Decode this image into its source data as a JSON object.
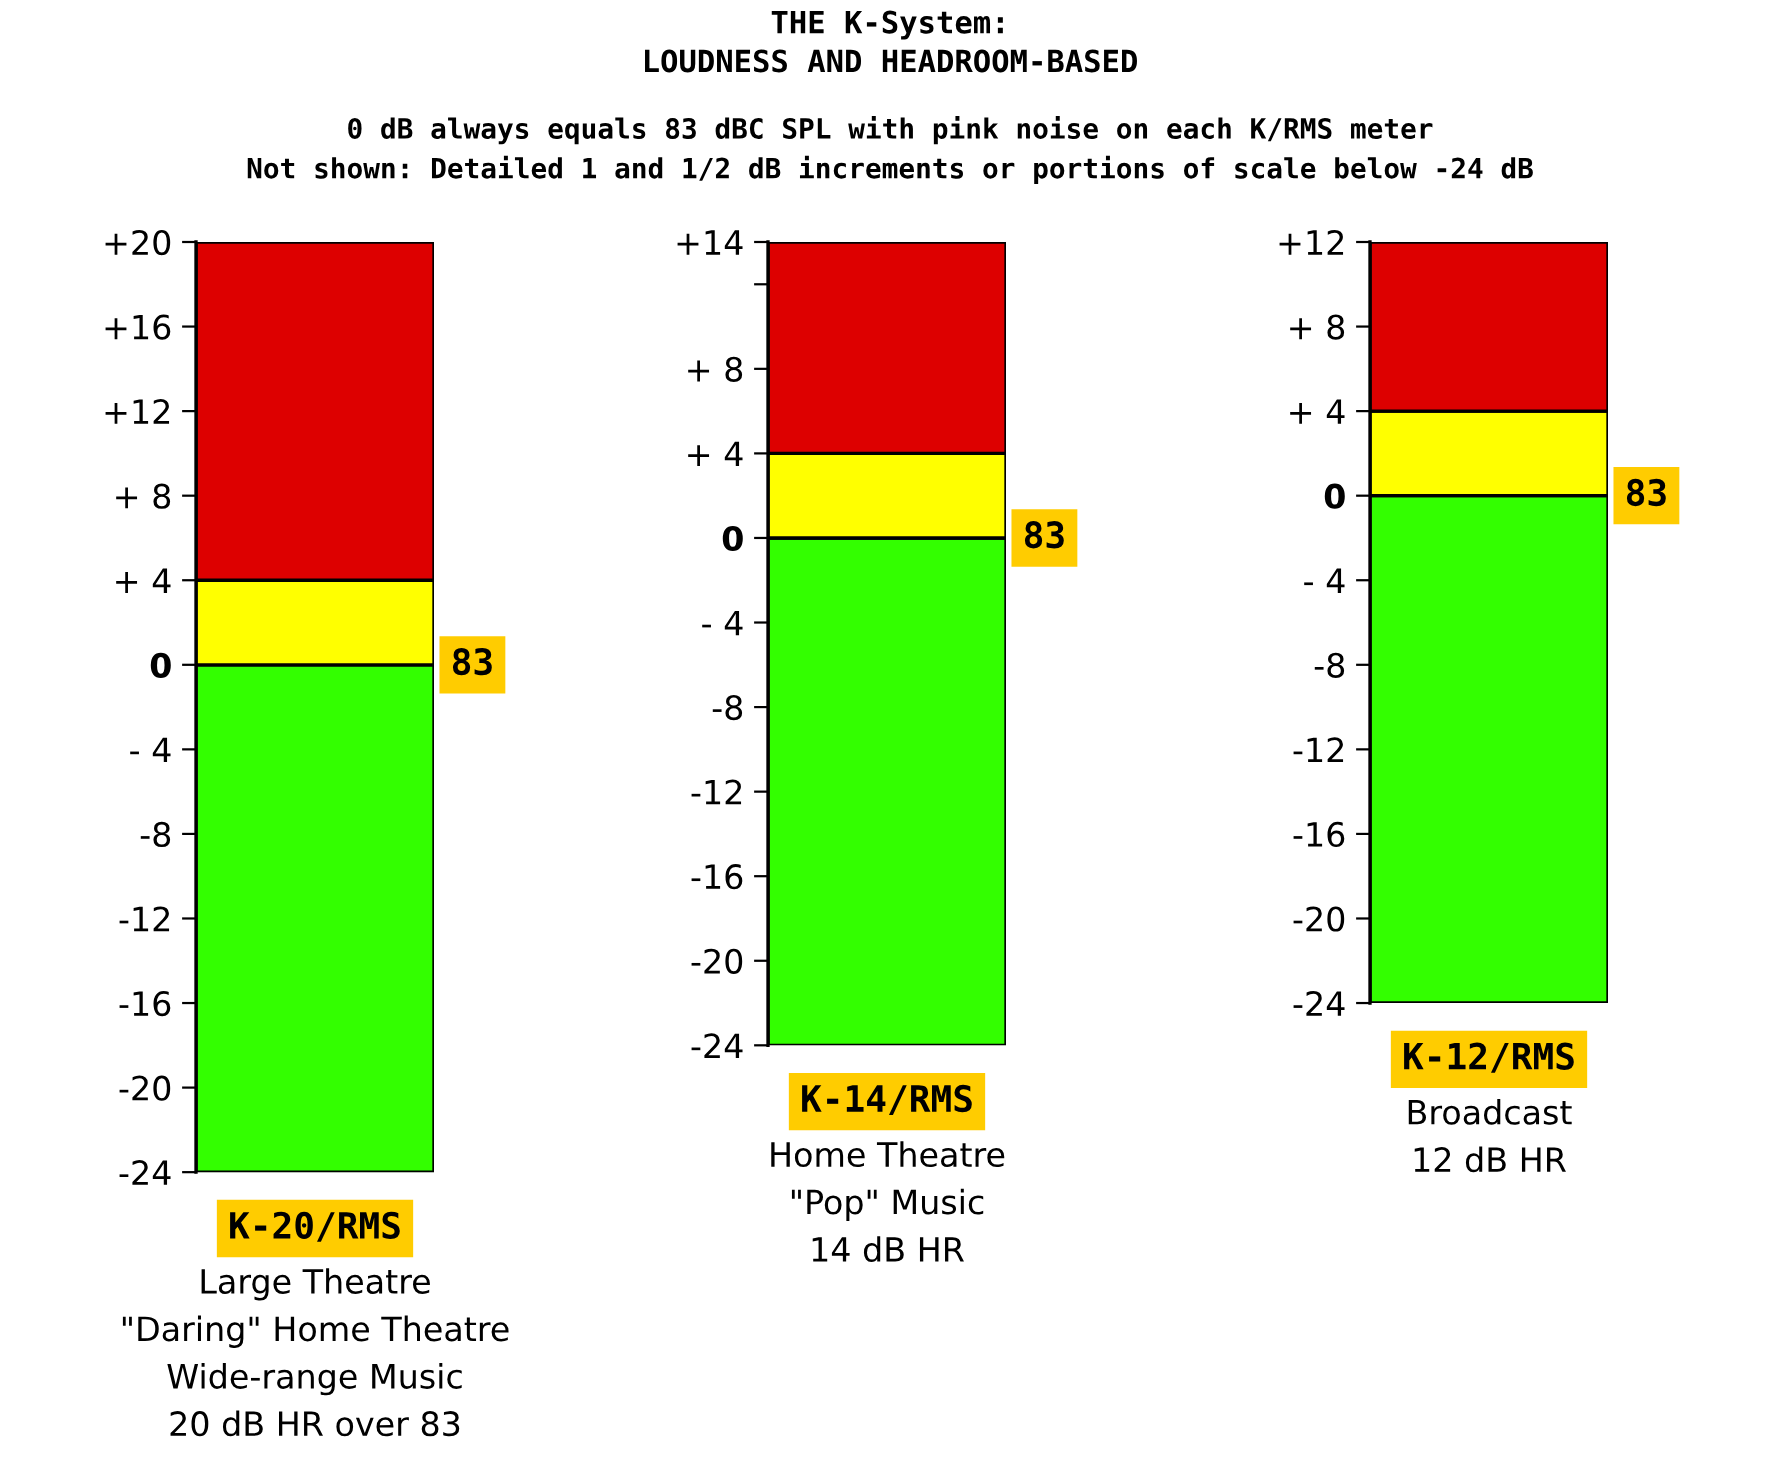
{
  "chart_data": [
    {
      "type": "bar",
      "categories": [
        "K-20/RMS"
      ],
      "series": [
        {
          "color": "#33ff00",
          "values": [
            24
          ],
          "base": [
            -24
          ]
        },
        {
          "color": "#ffff00",
          "values": [
            4
          ],
          "base": [
            0
          ]
        },
        {
          "color": "#dd0000",
          "values": [
            16
          ],
          "base": [
            4
          ]
        }
      ],
      "ylim": [
        -24,
        20
      ],
      "yticks": [
        {
          "value": 20,
          "label": "+20"
        },
        {
          "value": 16,
          "label": "+16"
        },
        {
          "value": 12,
          "label": "+12"
        },
        {
          "value": 8,
          "label": "+ 8"
        },
        {
          "value": 4,
          "label": "+ 4"
        },
        {
          "value": 0,
          "label": "0"
        },
        {
          "value": -4,
          "label": "- 4"
        },
        {
          "value": -8,
          "label": "-8"
        },
        {
          "value": -12,
          "label": "-12"
        },
        {
          "value": -16,
          "label": "-16"
        },
        {
          "value": -20,
          "label": "-20"
        },
        {
          "value": -24,
          "label": "-24"
        }
      ],
      "grid": false,
      "legend": false,
      "annotations": [
        "83",
        "Large Theatre\n\"Daring\" Home Theatre\nWide-range Music\n20 dB HR over 83"
      ]
    },
    {
      "type": "bar",
      "title": "THE K-System:\nLOUDNESS AND HEADROOM-BASED",
      "subtitle": "0 dB always equals 83 dBC SPL with pink noise on each K/RMS meter\nNot shown: Detailed 1 and 1/2 dB increments or portions of scale below -24 dB",
      "categories": [
        "K-14/RMS"
      ],
      "series": [
        {
          "color": "#33ff00",
          "values": [
            24
          ],
          "base": [
            -24
          ]
        },
        {
          "color": "#ffff00",
          "values": [
            4
          ],
          "base": [
            0
          ]
        },
        {
          "color": "#dd0000",
          "values": [
            10
          ],
          "base": [
            4
          ]
        }
      ],
      "ylim": [
        -24,
        14
      ],
      "yticks": [
        {
          "value": 14,
          "label": "+14"
        },
        {
          "value": 12,
          "label": null
        },
        {
          "value": 8,
          "label": "+ 8"
        },
        {
          "value": 4,
          "label": "+ 4"
        },
        {
          "value": 0,
          "label": "0"
        },
        {
          "value": -4,
          "label": "- 4"
        },
        {
          "value": -8,
          "label": "-8"
        },
        {
          "value": -12,
          "label": "-12"
        },
        {
          "value": -16,
          "label": "-16"
        },
        {
          "value": -20,
          "label": "-20"
        },
        {
          "value": -24,
          "label": "-24"
        }
      ],
      "grid": false,
      "legend": false,
      "annotations": [
        "83",
        "Home Theatre\n\"Pop\" Music\n14 dB HR"
      ]
    },
    {
      "type": "bar",
      "categories": [
        "K-12/RMS"
      ],
      "series": [
        {
          "color": "#33ff00",
          "values": [
            24
          ],
          "base": [
            -24
          ]
        },
        {
          "color": "#ffff00",
          "values": [
            4
          ],
          "base": [
            0
          ]
        },
        {
          "color": "#dd0000",
          "values": [
            8
          ],
          "base": [
            4
          ]
        }
      ],
      "ylim": [
        -24,
        12
      ],
      "yticks": [
        {
          "value": 12,
          "label": "+12"
        },
        {
          "value": 8,
          "label": "+ 8"
        },
        {
          "value": 4,
          "label": "+ 4"
        },
        {
          "value": 0,
          "label": "0"
        },
        {
          "value": -4,
          "label": "- 4"
        },
        {
          "value": -8,
          "label": "-8"
        },
        {
          "value": -12,
          "label": "-12"
        },
        {
          "value": -16,
          "label": "-16"
        },
        {
          "value": -20,
          "label": "-20"
        },
        {
          "value": -24,
          "label": "-24"
        }
      ],
      "grid": false,
      "legend": false,
      "annotations": [
        "83",
        "Broadcast\n12 dB HR"
      ]
    }
  ]
}
